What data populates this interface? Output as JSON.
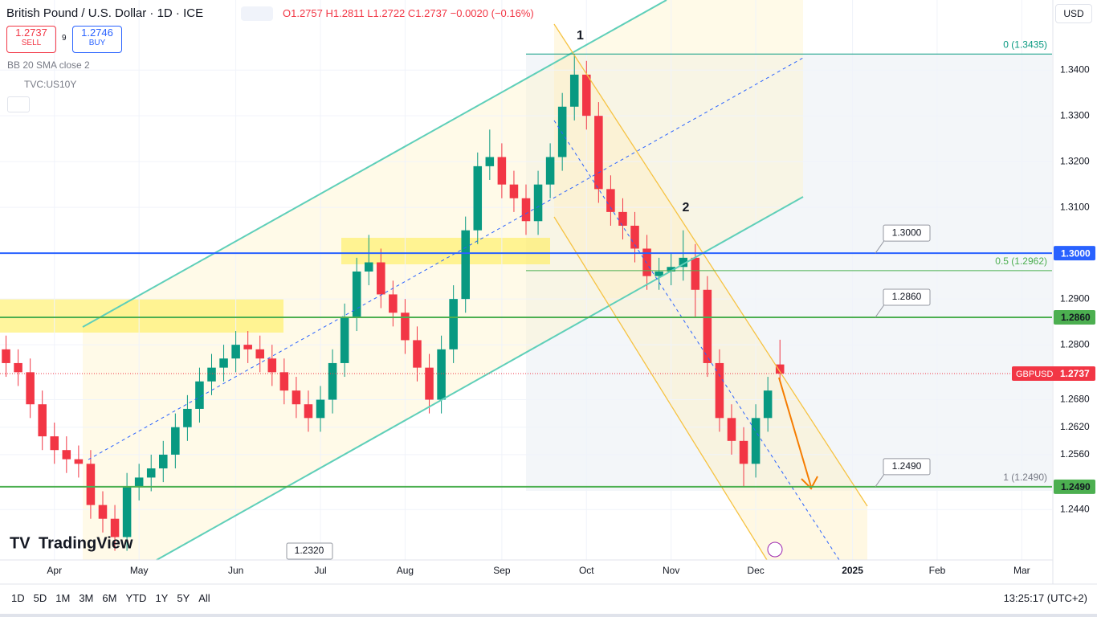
{
  "chart_data": {
    "type": "candlestick",
    "categories": [
      null,
      null,
      null,
      null,
      "Apr",
      null,
      null,
      null,
      null,
      null,
      null,
      "May",
      null,
      null,
      null,
      null,
      null,
      null,
      null,
      "Jun",
      null,
      null,
      null,
      null,
      null,
      null,
      "Jul",
      null,
      null,
      null,
      null,
      null,
      null,
      "Aug",
      null,
      null,
      null,
      null,
      null,
      null,
      null,
      "Sep",
      null,
      null,
      null,
      null,
      null,
      null,
      "Oct",
      null,
      null,
      null,
      null,
      null,
      null,
      "Nov",
      null,
      null,
      null,
      null,
      null,
      null,
      "Dec",
      null,
      null,
      null,
      null,
      null,
      null,
      null,
      "2025",
      null,
      null,
      null,
      null,
      null,
      null,
      "Feb",
      null,
      null,
      null,
      null,
      null,
      null,
      "Mar",
      null,
      null
    ],
    "open": [
      1.279,
      1.276,
      1.274,
      1.267,
      1.26,
      1.257,
      1.255,
      1.254,
      1.245,
      1.242,
      1.238,
      1.249,
      1.251,
      1.253,
      1.256,
      1.262,
      1.266,
      1.272,
      1.275,
      1.277,
      1.28,
      1.279,
      1.277,
      1.274,
      1.27,
      1.267,
      1.264,
      1.268,
      1.276,
      1.286,
      1.296,
      1.298,
      1.291,
      1.287,
      1.281,
      1.275,
      1.268,
      1.279,
      1.29,
      1.305,
      1.319,
      1.321,
      1.315,
      1.312,
      1.307,
      1.315,
      1.321,
      1.332,
      1.339,
      1.33,
      1.314,
      1.309,
      1.306,
      1.301,
      1.295,
      1.296,
      1.297,
      1.299,
      1.292,
      1.276,
      1.264,
      1.259,
      1.254,
      1.264,
      1.2757,
      null,
      null,
      null,
      null,
      null,
      null,
      null,
      null,
      null,
      null,
      null,
      null,
      null,
      null,
      null,
      null,
      null,
      null,
      null,
      null,
      null,
      null
    ],
    "high": [
      1.282,
      1.279,
      1.277,
      1.27,
      1.263,
      1.26,
      1.258,
      1.257,
      1.248,
      1.245,
      1.252,
      1.254,
      1.256,
      1.259,
      1.265,
      1.269,
      1.275,
      1.278,
      1.28,
      1.283,
      1.283,
      1.282,
      1.28,
      1.277,
      1.273,
      1.27,
      1.271,
      1.279,
      1.289,
      1.299,
      1.304,
      1.301,
      1.294,
      1.29,
      1.284,
      1.278,
      1.282,
      1.293,
      1.308,
      1.322,
      1.327,
      1.324,
      1.318,
      1.315,
      1.318,
      1.324,
      1.335,
      1.3435,
      1.342,
      1.333,
      1.317,
      1.312,
      1.309,
      1.304,
      1.299,
      1.3,
      1.305,
      1.302,
      1.295,
      1.279,
      1.267,
      1.262,
      1.267,
      1.273,
      1.2811,
      null,
      null,
      null,
      null,
      null,
      null,
      null,
      null,
      null,
      null,
      null,
      null,
      null,
      null,
      null,
      null,
      null,
      null,
      null,
      null,
      null,
      null
    ],
    "low": [
      1.273,
      1.271,
      1.264,
      1.257,
      1.254,
      1.252,
      1.251,
      1.242,
      1.239,
      1.235,
      1.235,
      1.246,
      1.248,
      1.25,
      1.253,
      1.259,
      1.263,
      1.269,
      1.272,
      1.274,
      1.276,
      1.274,
      1.271,
      1.267,
      1.264,
      1.261,
      1.261,
      1.265,
      1.273,
      1.283,
      1.293,
      1.288,
      1.284,
      1.278,
      1.272,
      1.265,
      1.265,
      1.276,
      1.287,
      1.302,
      1.316,
      1.312,
      1.309,
      1.304,
      1.304,
      1.312,
      1.318,
      1.329,
      1.327,
      1.311,
      1.306,
      1.303,
      1.298,
      1.292,
      1.292,
      1.293,
      1.294,
      1.286,
      1.273,
      1.261,
      1.256,
      1.249,
      1.251,
      1.261,
      1.2722,
      null,
      null,
      null,
      null,
      null,
      null,
      null,
      null,
      null,
      null,
      null,
      null,
      null,
      null,
      null,
      null,
      null,
      null,
      null,
      null,
      null,
      null
    ],
    "close": [
      1.276,
      1.274,
      1.267,
      1.26,
      1.257,
      1.255,
      1.254,
      1.245,
      1.242,
      1.238,
      1.249,
      1.251,
      1.253,
      1.256,
      1.262,
      1.266,
      1.272,
      1.275,
      1.277,
      1.28,
      1.279,
      1.277,
      1.274,
      1.27,
      1.267,
      1.264,
      1.268,
      1.276,
      1.286,
      1.296,
      1.298,
      1.291,
      1.287,
      1.281,
      1.275,
      1.268,
      1.279,
      1.29,
      1.305,
      1.319,
      1.321,
      1.315,
      1.312,
      1.307,
      1.315,
      1.321,
      1.332,
      1.339,
      1.33,
      1.314,
      1.309,
      1.306,
      1.301,
      1.295,
      1.296,
      1.297,
      1.299,
      1.292,
      1.276,
      1.264,
      1.259,
      1.254,
      1.264,
      1.27,
      1.2737,
      null,
      null,
      null,
      null,
      null,
      null,
      null,
      null,
      null,
      null,
      null,
      null,
      null,
      null,
      null,
      null,
      null,
      null,
      null,
      null,
      null,
      null
    ],
    "up_color": "#089981",
    "down_color": "#f23645",
    "ylim": [
      1.233,
      1.3553
    ],
    "yticks": [
      {
        "value": 1.244,
        "label": "1.2440"
      },
      {
        "value": 1.256,
        "label": "1.2560"
      },
      {
        "value": 1.262,
        "label": "1.2620"
      },
      {
        "value": 1.268,
        "label": "1.2680"
      },
      {
        "value": 1.28,
        "label": "1.2800"
      },
      {
        "value": 1.29,
        "label": "1.2900"
      },
      {
        "value": 1.31,
        "label": "1.3100"
      },
      {
        "value": 1.32,
        "label": "1.3200"
      },
      {
        "value": 1.33,
        "label": "1.3300"
      },
      {
        "value": 1.34,
        "label": "1.3400"
      }
    ],
    "grid": true,
    "levels": [
      {
        "value": 1.3,
        "label": "1.3000",
        "color": "#2962ff"
      },
      {
        "value": 1.286,
        "label": "1.2860",
        "color": "#4caf50"
      },
      {
        "value": 1.249,
        "label": "1.2490",
        "color": "#4caf50"
      }
    ],
    "fib": [
      {
        "value": 1.3435,
        "label": "0 (1.3435)",
        "color": "#089981"
      },
      {
        "value": 1.2962,
        "label": "0.5 (1.2962)",
        "color": "#4caf50"
      },
      {
        "value": 1.249,
        "label": "1 (1.2490)",
        "color": "#787b86"
      }
    ],
    "last": {
      "symbol": "GBPUSD",
      "value": 1.2737,
      "label": "1.2737",
      "color": "#f23645"
    },
    "callouts": [
      "1.3000",
      "1.2860",
      "1.2490",
      "1.2320"
    ],
    "annotations": [
      "1",
      "2"
    ]
  },
  "ui": {
    "title": "British Pound / U.S. Dollar · 1D · ICE",
    "ohlc": "O1.2757 H1.2811 L1.2722 C1.2737 −0.0020 (−0.16%)",
    "sell_price": "1.2737",
    "sell": "SELL",
    "spread": "9",
    "buy_price": "1.2746",
    "buy": "BUY",
    "indicators": [
      "BB 20 SMA close 2",
      "TVC:US10Y"
    ],
    "currency": "USD",
    "logo": "TradingView",
    "ranges": [
      "1D",
      "5D",
      "1M",
      "3M",
      "6M",
      "YTD",
      "1Y",
      "5Y",
      "All"
    ],
    "clock": "13:25:17 (UTC+2)"
  }
}
